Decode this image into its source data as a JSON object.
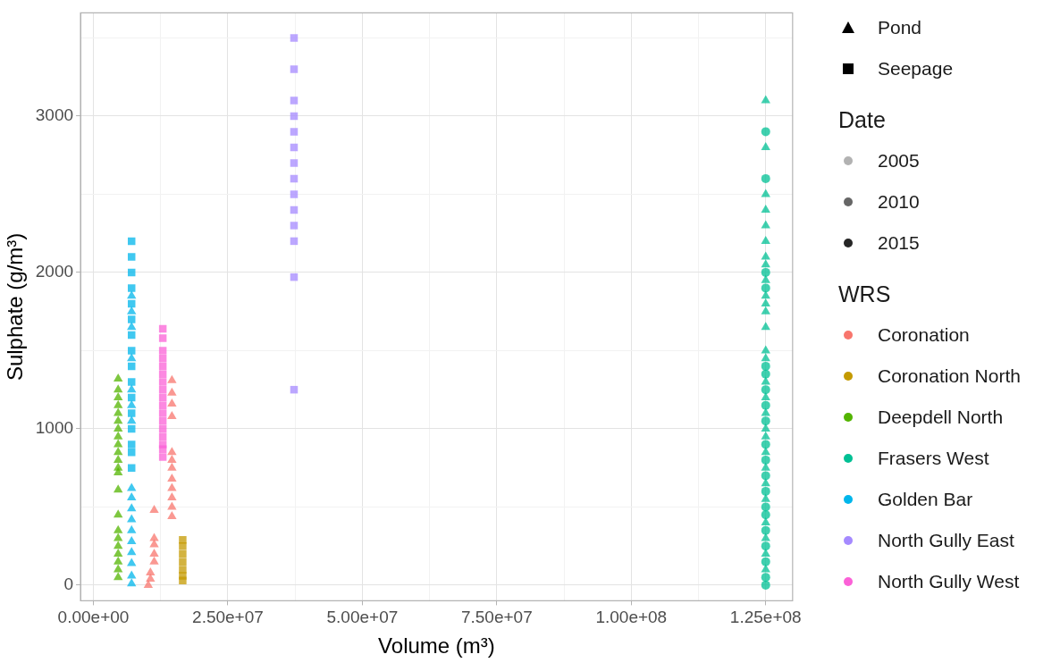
{
  "chart_data": {
    "type": "scatter",
    "xlabel": "Volume (m³)",
    "ylabel": "Sulphate (g/m³)",
    "legend_title": "WRS",
    "legend": "right",
    "grid": true,
    "xlim": [
      -2400000,
      130000000
    ],
    "ylim": [
      -100,
      3660
    ],
    "xticks": [
      {
        "value": 0,
        "label": "0.00e+00"
      },
      {
        "value": 12500000,
        "label": null
      },
      {
        "value": 25000000,
        "label": "2.50e+07"
      },
      {
        "value": 37500000,
        "label": null
      },
      {
        "value": 50000000,
        "label": "5.00e+07"
      },
      {
        "value": 62500000,
        "label": null
      },
      {
        "value": 75000000,
        "label": "7.50e+07"
      },
      {
        "value": 87500000,
        "label": null
      },
      {
        "value": 100000000,
        "label": "1.00e+08"
      },
      {
        "value": 112500000,
        "label": null
      },
      {
        "value": 125000000,
        "label": "1.25e+08"
      }
    ],
    "yticks": [
      0,
      {
        "value": 500,
        "label": null
      },
      1000,
      {
        "value": 1500,
        "label": null
      },
      2000,
      {
        "value": 2500,
        "label": null
      },
      3000,
      {
        "value": 3500,
        "label": null
      }
    ],
    "annotations": [
      "Pond",
      "Seepage",
      "Date",
      "2005",
      "2010",
      "2015"
    ],
    "series": [
      {
        "name": "Coronation",
        "color": "#f8766d",
        "marker": "triangle",
        "x": [
          14600000,
          14600000,
          14600000,
          14600000,
          14600000,
          14600000,
          14600000,
          14600000,
          14600000,
          14600000,
          14600000,
          14600000,
          11300000,
          11300000,
          11300000,
          11300000,
          11300000,
          10600000,
          10600000,
          10200000
        ],
        "values": [
          1310,
          1230,
          1160,
          1080,
          850,
          800,
          750,
          680,
          620,
          560,
          500,
          440,
          480,
          300,
          260,
          200,
          150,
          80,
          40,
          0
        ]
      },
      {
        "name": "Coronation North",
        "color": "#c49a00",
        "marker": "square",
        "x": [
          16600000,
          16600000,
          16600000,
          16600000,
          16600000,
          16600000,
          16600000
        ],
        "values": [
          290,
          250,
          200,
          150,
          100,
          60,
          30
        ]
      },
      {
        "name": "Deepdell North",
        "color": "#53b400",
        "marker": "triangle",
        "x": [
          4600000,
          4600000,
          4600000,
          4600000,
          4600000,
          4600000,
          4600000,
          4600000,
          4600000,
          4600000,
          4600000,
          4600000,
          4600000,
          4600000,
          4600000,
          4600000,
          4600000,
          4600000,
          4600000,
          4600000,
          4600000,
          4600000
        ],
        "values": [
          1320,
          1250,
          1200,
          1150,
          1100,
          1050,
          1000,
          950,
          900,
          850,
          800,
          750,
          720,
          610,
          450,
          350,
          300,
          250,
          200,
          150,
          100,
          50
        ]
      },
      {
        "name": "Frasers West",
        "color": "#00c094",
        "marker": "triangle",
        "x": [
          125000000,
          125000000,
          125000000,
          125000000,
          125000000,
          125000000,
          125000000,
          125000000,
          125000000,
          125000000,
          125000000,
          125000000,
          125000000,
          125000000,
          125000000,
          125000000,
          125000000,
          125000000,
          125000000,
          125000000,
          125000000,
          125000000,
          125000000,
          125000000,
          125000000,
          125000000,
          125000000,
          125000000
        ],
        "values": [
          3100,
          2800,
          2500,
          2400,
          2300,
          2200,
          2100,
          2050,
          1950,
          1850,
          1800,
          1750,
          1650,
          1500,
          1450,
          1300,
          1200,
          1100,
          1000,
          950,
          850,
          750,
          650,
          550,
          400,
          300,
          200,
          100
        ]
      },
      {
        "color": "#00c094",
        "marker": "circle",
        "x": [
          125000000,
          125000000,
          125000000,
          125000000,
          125000000,
          125000000,
          125000000,
          125000000,
          125000000,
          125000000,
          125000000,
          125000000,
          125000000,
          125000000,
          125000000,
          125000000,
          125000000,
          125000000,
          125000000,
          125000000
        ],
        "values": [
          2900,
          2600,
          2000,
          1900,
          1400,
          1350,
          1250,
          1150,
          1050,
          900,
          800,
          700,
          600,
          500,
          450,
          350,
          250,
          150,
          50,
          0
        ]
      },
      {
        "name": "Golden Bar",
        "color": "#00b6eb",
        "marker": "square",
        "x": [
          7100000,
          7100000,
          7100000,
          7100000,
          7100000,
          7100000,
          7100000,
          7100000,
          7100000,
          7100000,
          7100000,
          7100000,
          7100000,
          7100000,
          7100000,
          7100000
        ],
        "values": [
          2200,
          2100,
          2000,
          1900,
          1800,
          1700,
          1600,
          1500,
          1400,
          1300,
          1200,
          1100,
          1000,
          900,
          850,
          750
        ]
      },
      {
        "color": "#00b6eb",
        "marker": "triangle",
        "x": [
          7100000,
          7100000,
          7100000,
          7100000,
          7100000,
          7100000,
          7100000,
          7100000,
          7100000,
          7100000,
          7100000,
          7100000,
          7100000,
          7100000,
          7100000,
          7100000,
          7100000
        ],
        "values": [
          1850,
          1750,
          1650,
          1450,
          1250,
          1150,
          1050,
          620,
          560,
          490,
          420,
          350,
          280,
          210,
          140,
          60,
          10
        ]
      },
      {
        "name": "North Gully East",
        "color": "#a58aff",
        "marker": "square",
        "x": [
          37300000,
          37300000,
          37300000,
          37300000,
          37300000,
          37300000,
          37300000,
          37300000,
          37300000,
          37300000,
          37300000,
          37300000,
          37300000,
          37300000
        ],
        "values": [
          3500,
          3300,
          3100,
          3000,
          2900,
          2800,
          2700,
          2600,
          2500,
          2400,
          2300,
          2200,
          1970,
          1250
        ]
      },
      {
        "name": "North Gully West",
        "color": "#fb61d7",
        "marker": "square",
        "x": [
          12900000,
          12900000,
          12900000,
          12900000,
          12900000,
          12900000,
          12900000,
          12900000,
          12900000,
          12900000,
          12900000,
          12900000,
          12900000,
          12900000,
          12900000,
          12900000,
          12900000
        ],
        "values": [
          1640,
          1580,
          1500,
          1450,
          1400,
          1350,
          1300,
          1250,
          1200,
          1150,
          1100,
          1050,
          1000,
          950,
          900,
          870,
          820
        ]
      }
    ]
  }
}
